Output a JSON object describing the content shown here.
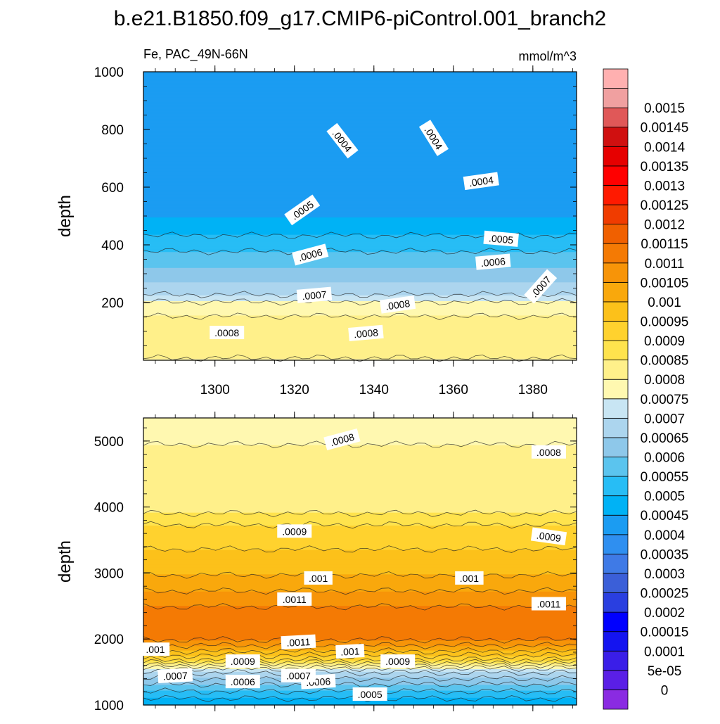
{
  "title": "b.e21.B1850.f09_g17.CMIP6-piControl.001_branch2",
  "chart_data": [
    {
      "type": "heatmap",
      "panel": "upper",
      "subtitle_left": "Fe, PAC_49N-66N",
      "subtitle_right": "mmol/m^3",
      "ylabel": "depth",
      "xlim": [
        1282,
        1391
      ],
      "ylim": [
        1000,
        0
      ],
      "x_ticks": [
        1300,
        1320,
        1340,
        1360,
        1380
      ],
      "y_ticks": [
        200,
        400,
        600,
        800,
        1000
      ],
      "y_tick_labels": [
        "200",
        "400",
        "600",
        "800",
        "1000"
      ],
      "field_profile": [
        {
          "depth": 0,
          "value": 0.00079
        },
        {
          "depth": 30,
          "value": 0.00083
        },
        {
          "depth": 120,
          "value": 0.00082
        },
        {
          "depth": 190,
          "value": 0.00078
        },
        {
          "depth": 230,
          "value": 0.00069
        },
        {
          "depth": 320,
          "value": 0.0006
        },
        {
          "depth": 420,
          "value": 0.00051
        },
        {
          "depth": 520,
          "value": 0.00043
        },
        {
          "depth": 700,
          "value": 0.00041
        },
        {
          "depth": 900,
          "value": 0.00041
        },
        {
          "depth": 1000,
          "value": 0.00043
        }
      ],
      "contour_labels": [
        {
          "text": ".0008",
          "x": 1303,
          "depth": 95,
          "angle": 0
        },
        {
          "text": ".0008",
          "x": 1338,
          "depth": 93,
          "angle": -5
        },
        {
          "text": ".0007",
          "x": 1325,
          "depth": 225,
          "angle": -5
        },
        {
          "text": ".0008",
          "x": 1346,
          "depth": 192,
          "angle": -8
        },
        {
          "text": ".0007",
          "x": 1382,
          "depth": 255,
          "angle": -48
        },
        {
          "text": ".0006",
          "x": 1370,
          "depth": 340,
          "angle": -5
        },
        {
          "text": ".0006",
          "x": 1324,
          "depth": 365,
          "angle": -15
        },
        {
          "text": ".0005",
          "x": 1372,
          "depth": 420,
          "angle": 5
        },
        {
          "text": ".0005",
          "x": 1322,
          "depth": 520,
          "angle": -35
        },
        {
          "text": ".0004",
          "x": 1367,
          "depth": 620,
          "angle": -8
        },
        {
          "text": ".0004",
          "x": 1332,
          "depth": 760,
          "angle": 52
        },
        {
          "text": ".0004",
          "x": 1355,
          "depth": 770,
          "angle": 58
        }
      ]
    },
    {
      "type": "heatmap",
      "panel": "lower",
      "ylabel": "depth",
      "xlim": [
        1282,
        1391
      ],
      "ylim": [
        5350,
        1000
      ],
      "y_ticks": [
        1000,
        2000,
        3000,
        4000,
        5000
      ],
      "y_tick_labels": [
        "1000",
        "2000",
        "3000",
        "4000",
        "5000"
      ],
      "field_profile": [
        {
          "depth": 1000,
          "value": 0.00046
        },
        {
          "depth": 1150,
          "value": 0.00052
        },
        {
          "depth": 1350,
          "value": 0.00062
        },
        {
          "depth": 1500,
          "value": 0.0007
        },
        {
          "depth": 1700,
          "value": 0.00092
        },
        {
          "depth": 1850,
          "value": 0.00102
        },
        {
          "depth": 2000,
          "value": 0.00111
        },
        {
          "depth": 2200,
          "value": 0.00114
        },
        {
          "depth": 2500,
          "value": 0.0011
        },
        {
          "depth": 2900,
          "value": 0.00101
        },
        {
          "depth": 3500,
          "value": 0.00093
        },
        {
          "depth": 3800,
          "value": 0.00089
        },
        {
          "depth": 4000,
          "value": 0.00082
        },
        {
          "depth": 4800,
          "value": 0.00081
        },
        {
          "depth": 5350,
          "value": 0.00077
        }
      ],
      "contour_labels": [
        {
          "text": ".0005",
          "x": 1339,
          "depth": 1160,
          "angle": 0
        },
        {
          "text": ".0006",
          "x": 1307,
          "depth": 1350,
          "angle": 0
        },
        {
          "text": ".0006",
          "x": 1326,
          "depth": 1350,
          "angle": -3
        },
        {
          "text": ".0007",
          "x": 1290,
          "depth": 1440,
          "angle": -3
        },
        {
          "text": ".0007",
          "x": 1321,
          "depth": 1440,
          "angle": 0
        },
        {
          "text": ".0009",
          "x": 1307,
          "depth": 1660,
          "angle": 0
        },
        {
          "text": ".0009",
          "x": 1346,
          "depth": 1660,
          "angle": 0
        },
        {
          "text": ".001",
          "x": 1285,
          "depth": 1840,
          "angle": 0
        },
        {
          "text": ".001",
          "x": 1334,
          "depth": 1810,
          "angle": -3
        },
        {
          "text": ".0011",
          "x": 1321,
          "depth": 1950,
          "angle": -3
        },
        {
          "text": ".0011",
          "x": 1320,
          "depth": 2600,
          "angle": 0
        },
        {
          "text": ".0011",
          "x": 1384,
          "depth": 2530,
          "angle": 0
        },
        {
          "text": ".001",
          "x": 1326,
          "depth": 2920,
          "angle": 0
        },
        {
          "text": ".001",
          "x": 1364,
          "depth": 2920,
          "angle": 0
        },
        {
          "text": ".0009",
          "x": 1320,
          "depth": 3630,
          "angle": 0
        },
        {
          "text": ".0009",
          "x": 1384,
          "depth": 3550,
          "angle": 8
        },
        {
          "text": ".0008",
          "x": 1384,
          "depth": 4830,
          "angle": 0
        },
        {
          "text": ".0008",
          "x": 1332,
          "depth": 5020,
          "angle": -15
        }
      ]
    }
  ],
  "colorbar": {
    "levels": [
      "0",
      "5e-05",
      "0.0001",
      "0.00015",
      "0.0002",
      "0.00025",
      "0.0003",
      "0.00035",
      "0.0004",
      "0.00045",
      "0.0005",
      "0.00055",
      "0.0006",
      "0.00065",
      "0.0007",
      "0.00075",
      "0.0008",
      "0.00085",
      "0.0009",
      "0.00095",
      "0.001",
      "0.00105",
      "0.0011",
      "0.00115",
      "0.0012",
      "0.00125",
      "0.0013",
      "0.00135",
      "0.0014",
      "0.00145",
      "0.0015"
    ],
    "colors": [
      "#8a2be2",
      "#5a1fe6",
      "#3a1ee8",
      "#1414f0",
      "#0000ff",
      "#2a3fe0",
      "#3b5fd8",
      "#3f7ae6",
      "#2f8ff0",
      "#1b9cf2",
      "#00b2f5",
      "#27bdf5",
      "#5bc4ee",
      "#8ec8ea",
      "#acd5ee",
      "#c8e5f3",
      "#fff8b0",
      "#fff08a",
      "#ffe34d",
      "#ffd22e",
      "#fcc11a",
      "#f9a80c",
      "#f79408",
      "#f47a04",
      "#f06000",
      "#f03c00",
      "#ff1a00",
      "#ff0000",
      "#e60000",
      "#d01010",
      "#e05858",
      "#f0a0a0",
      "#ffb0b0"
    ]
  }
}
